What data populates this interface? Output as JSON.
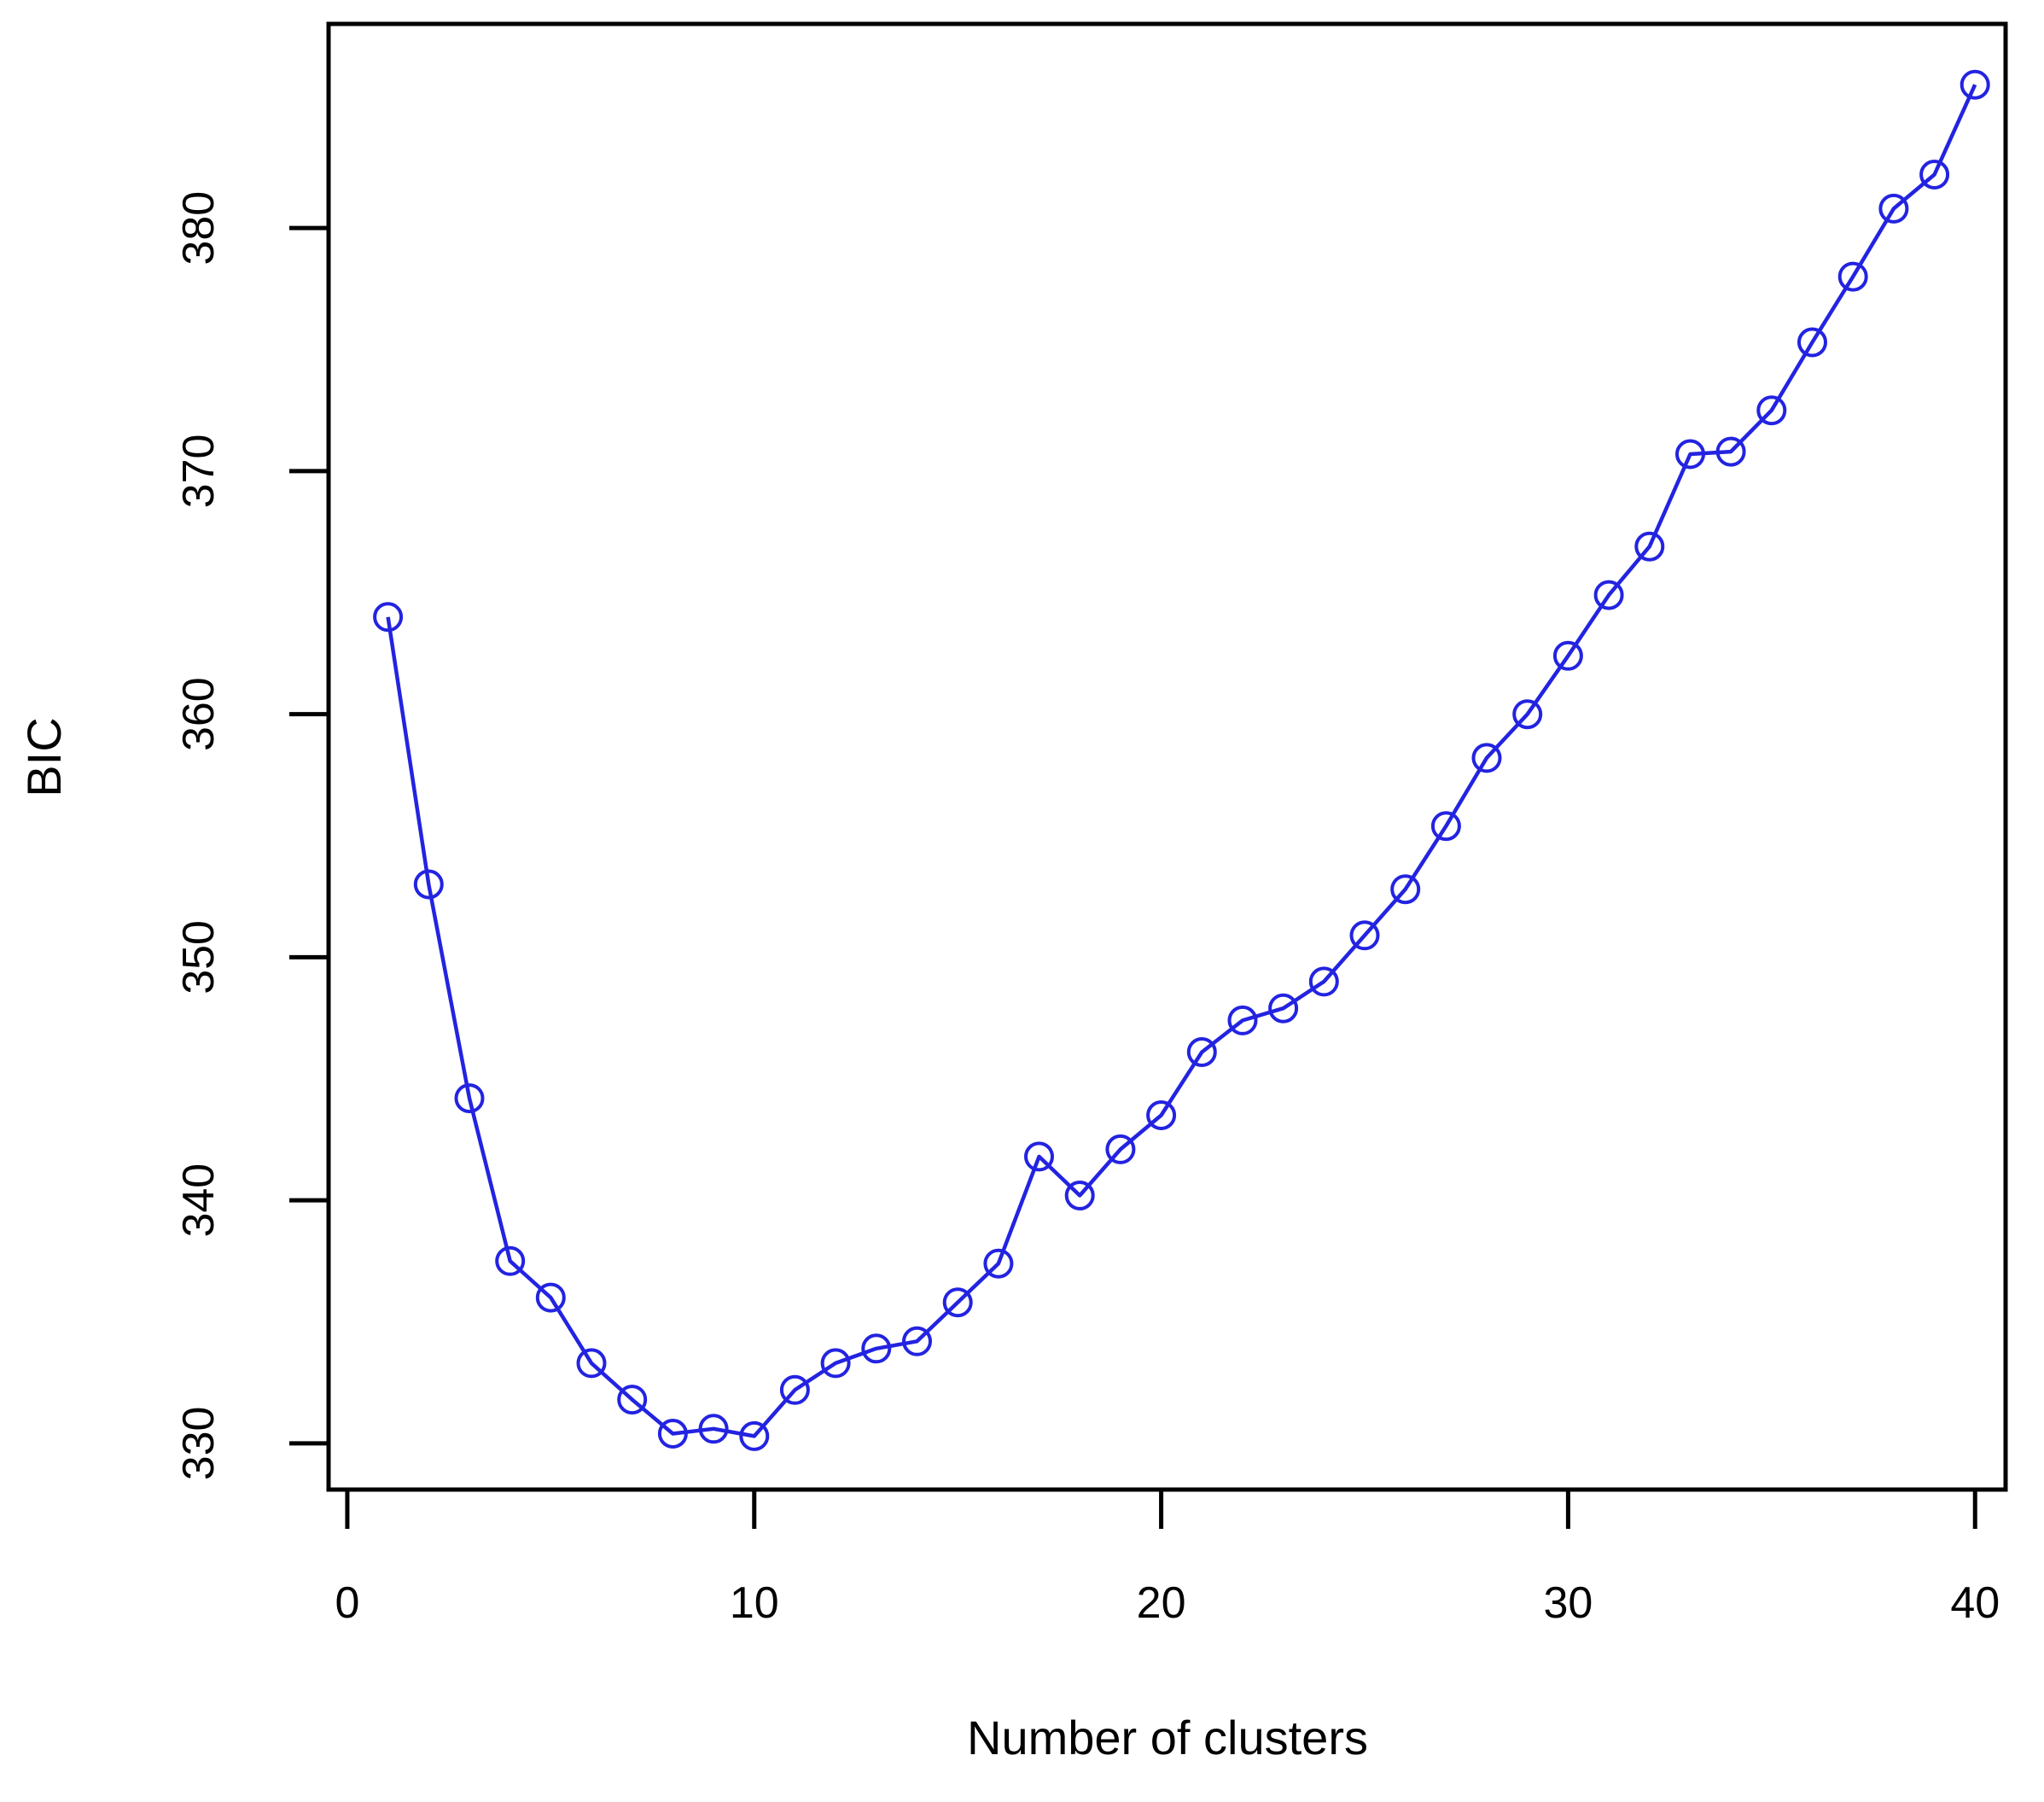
{
  "chart_data": {
    "type": "line",
    "title": "",
    "xlabel": "Number of clusters",
    "ylabel": "BIC",
    "x": [
      1,
      2,
      3,
      4,
      5,
      6,
      7,
      8,
      9,
      10,
      11,
      12,
      13,
      14,
      15,
      16,
      17,
      18,
      19,
      20,
      21,
      22,
      23,
      24,
      25,
      26,
      27,
      28,
      29,
      30,
      31,
      32,
      33,
      34,
      35,
      36,
      37,
      38,
      39,
      40
    ],
    "values": [
      364.0,
      353.0,
      344.2,
      337.5,
      336.0,
      333.3,
      331.8,
      330.4,
      330.6,
      330.3,
      332.2,
      333.3,
      333.9,
      334.2,
      335.8,
      337.4,
      341.8,
      340.2,
      342.1,
      343.5,
      346.1,
      347.4,
      347.9,
      349.0,
      350.9,
      352.8,
      355.4,
      358.2,
      360.0,
      362.4,
      364.9,
      366.9,
      370.7,
      370.8,
      372.5,
      375.3,
      378.0,
      380.8,
      382.2,
      385.9
    ],
    "x_ticks": [
      0,
      10,
      20,
      30,
      40
    ],
    "y_ticks": [
      330,
      340,
      350,
      360,
      370,
      380
    ],
    "xlim": [
      -0.46,
      40.75
    ],
    "ylim": [
      328.1,
      388.4
    ],
    "grid": false,
    "legend": null,
    "marker": "open-circle",
    "line_color": "#2323e1",
    "axis_color": "#000000",
    "background_color": "#ffffff"
  }
}
